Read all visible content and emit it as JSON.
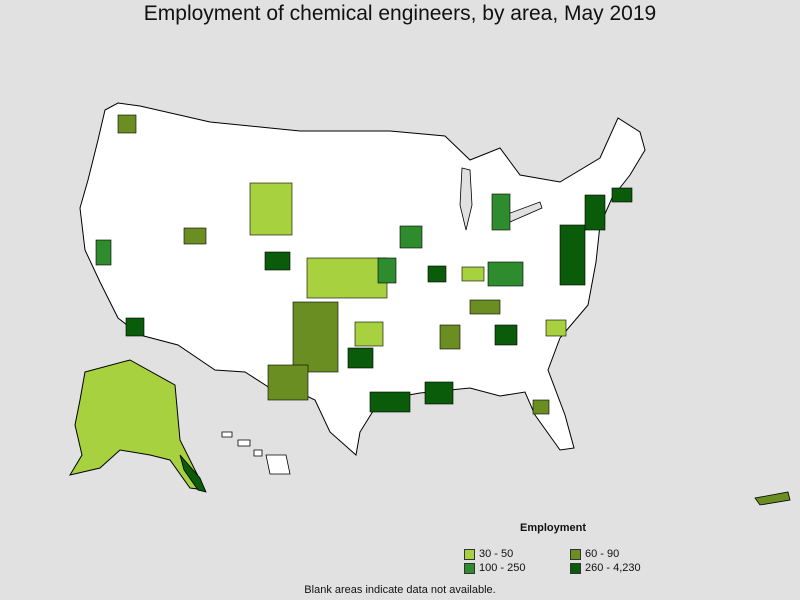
{
  "title": "Employment of chemical engineers, by area, May 2019",
  "legend": {
    "title": "Employment",
    "items": [
      {
        "label": "30 - 50",
        "color": "#a8d13f"
      },
      {
        "label": "60 - 90",
        "color": "#6b8e23"
      },
      {
        "label": "100 - 250",
        "color": "#2e8b2e"
      },
      {
        "label": "260 - 4,230",
        "color": "#0a5c0a"
      }
    ]
  },
  "footnote": "Blank areas indicate data not available.",
  "colors": {
    "background": "#e1e1e1",
    "land": "#ffffff",
    "border": "#000000"
  }
}
